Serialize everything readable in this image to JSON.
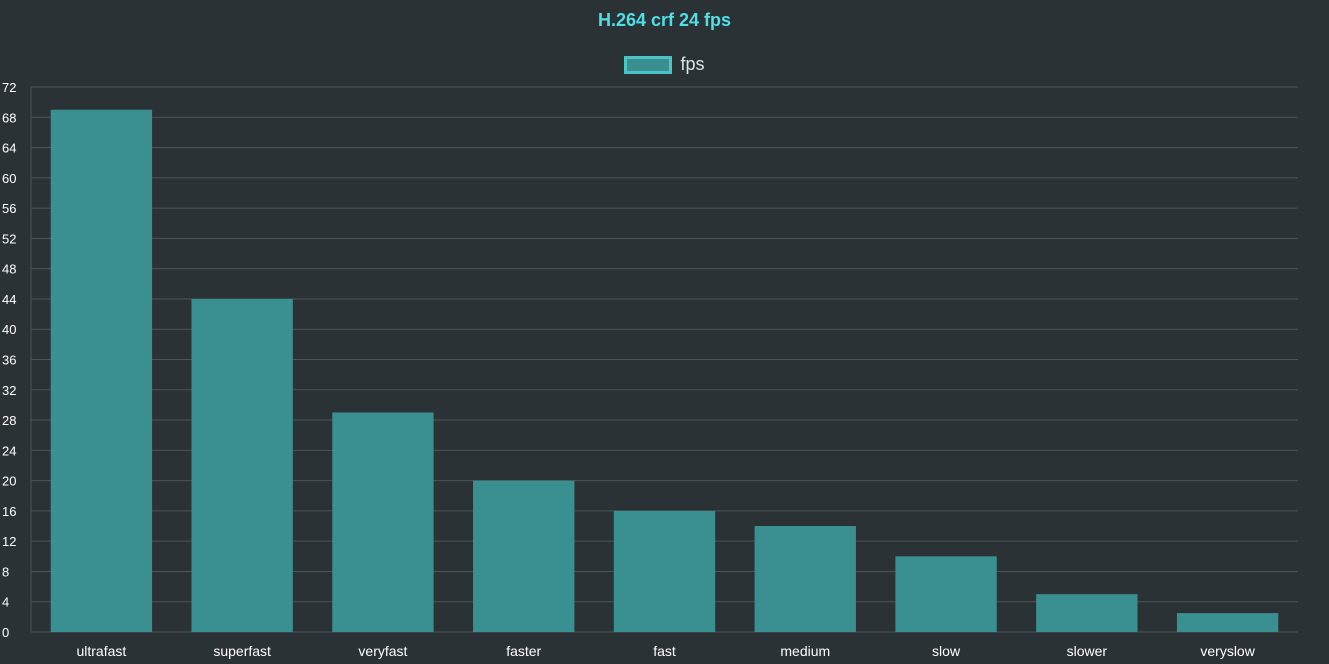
{
  "chart_data": {
    "type": "bar",
    "title": "H.264 crf 24 fps",
    "categories": [
      "ultrafast",
      "superfast",
      "veryfast",
      "faster",
      "fast",
      "medium",
      "slow",
      "slower",
      "veryslow"
    ],
    "series": [
      {
        "name": "fps",
        "values": [
          69,
          44,
          29,
          20,
          16,
          14,
          10,
          5,
          2.5
        ]
      }
    ],
    "ylim": [
      0,
      72
    ],
    "yticks": [
      0,
      4,
      8,
      12,
      16,
      20,
      24,
      28,
      32,
      36,
      40,
      44,
      48,
      52,
      56,
      60,
      64,
      68,
      72
    ],
    "xlabel": "",
    "ylabel": "",
    "grid": true,
    "legend_position": "top-center",
    "colors": {
      "title": "#4fdfe6",
      "bar_fill": "#3a8f90",
      "legend_border": "#4cc3c5",
      "grid": "#4a5558",
      "background": "#2b3236",
      "text": "#ffffff"
    }
  }
}
